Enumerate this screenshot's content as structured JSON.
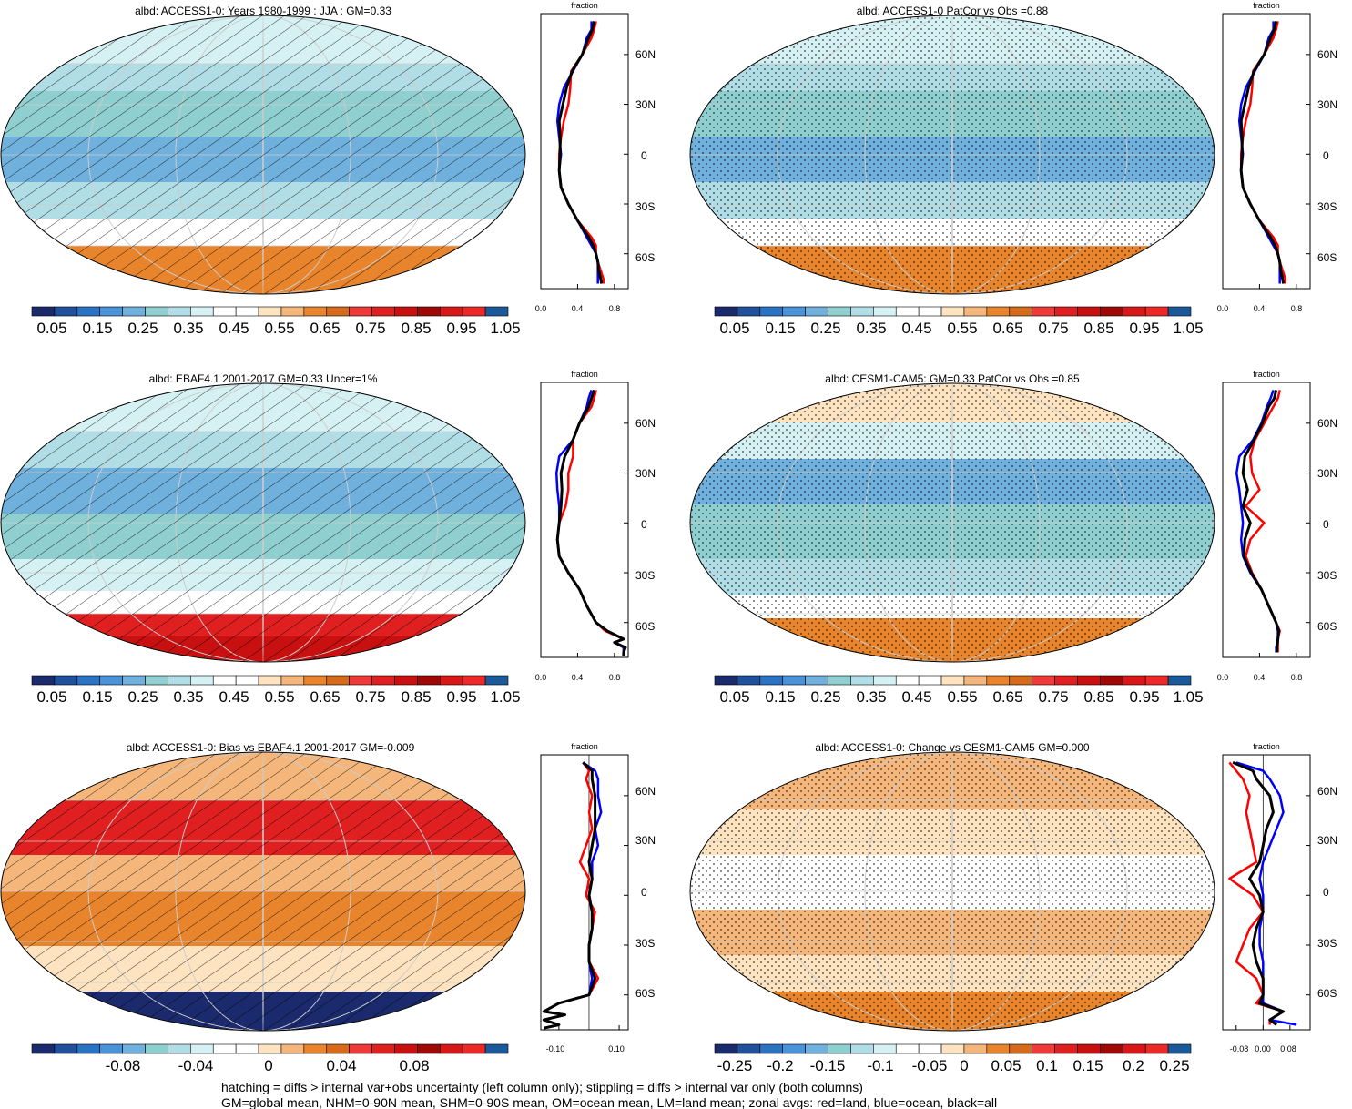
{
  "footer": {
    "line1": "hatching = diffs > internal var+obs uncertainty (left column only); stippling = diffs > internal var only (both columns)",
    "line2": "GM=global mean, NHM=0-90N mean, SHM=0-90S mean, OM=ocean mean, LM=land mean; zonal avgs: red=land, blue=ocean, black=all"
  },
  "colors": {
    "palette_full": [
      "#1a2a6c",
      "#21519c",
      "#2a72c4",
      "#4a93d9",
      "#6fb0dd",
      "#8fcfcf",
      "#b0dde6",
      "#d6f1f4",
      "#ffffff",
      "#ffffff",
      "#fde3bf",
      "#f4b67a",
      "#e8852c",
      "#d46a1a",
      "#f03a3a",
      "#e02020",
      "#c81010",
      "#a00808",
      "#d81818",
      "#ee2828",
      "#1a5a9a"
    ],
    "palette_diff": [
      "#1a2a6c",
      "#21519c",
      "#2a72c4",
      "#4a93d9",
      "#6fb0dd",
      "#8fcfcf",
      "#b0dde6",
      "#d6f1f4",
      "#ffffff",
      "#ffffff",
      "#fde3bf",
      "#f4b67a",
      "#e8852c",
      "#d46a1a",
      "#f03a3a",
      "#e02020",
      "#c81010",
      "#a00808",
      "#d81818",
      "#ee2828",
      "#1a5a9a"
    ],
    "land": "#ff0000",
    "ocean": "#0000ff",
    "all": "#000000"
  },
  "chart_data": [
    {
      "type": "heatmap",
      "title": "albd: ACCESS1-0: Years 1980-1999 : JJA : GM=0.33",
      "colorbar_labels": [
        "0.05",
        "0.15",
        "0.25",
        "0.35",
        "0.45",
        "0.55",
        "0.65",
        "0.75",
        "0.85",
        "0.95",
        "1.05"
      ],
      "overlay": "hatching",
      "zonal": {
        "title": "fraction",
        "lat_ticks": [
          "60N",
          "30N",
          "0",
          "30S",
          "60S"
        ],
        "lat_values": [
          60,
          30,
          0,
          -30,
          -60
        ],
        "x_ticks": [
          "0.0",
          "0.4",
          "0.8"
        ],
        "x_values": [
          0,
          0.4,
          0.8
        ],
        "xlim": [
          0,
          0.95
        ],
        "lat": [
          80,
          75,
          70,
          60,
          50,
          40,
          30,
          20,
          10,
          0,
          -10,
          -20,
          -30,
          -40,
          -50,
          -55,
          -60,
          -65,
          -70,
          -75,
          -78
        ],
        "land": [
          0.6,
          0.58,
          0.55,
          0.45,
          0.33,
          0.32,
          0.3,
          0.25,
          0.22,
          0.2,
          0.2,
          0.22,
          0.3,
          0.4,
          0.55,
          0.6,
          0.6,
          0.62,
          0.65,
          0.68,
          0.68
        ],
        "ocean": [
          0.55,
          0.55,
          0.5,
          0.45,
          0.35,
          0.25,
          0.2,
          0.18,
          0.2,
          0.22,
          0.2,
          0.22,
          0.3,
          0.4,
          0.5,
          0.55,
          0.6,
          0.62,
          0.62,
          0.62,
          0.62
        ],
        "all": [
          0.58,
          0.56,
          0.52,
          0.45,
          0.34,
          0.28,
          0.24,
          0.2,
          0.21,
          0.21,
          0.2,
          0.22,
          0.3,
          0.4,
          0.52,
          0.57,
          0.6,
          0.62,
          0.63,
          0.65,
          0.66
        ]
      }
    },
    {
      "type": "heatmap",
      "title": "albd: ACCESS1-0 PatCor vs Obs =0.88",
      "colorbar_labels": [
        "0.05",
        "0.15",
        "0.25",
        "0.35",
        "0.45",
        "0.55",
        "0.65",
        "0.75",
        "0.85",
        "0.95",
        "1.05"
      ],
      "overlay": "stippling",
      "zonal": {
        "title": "fraction",
        "lat_ticks": [
          "60N",
          "30N",
          "0",
          "30S",
          "60S"
        ],
        "lat_values": [
          60,
          30,
          0,
          -30,
          -60
        ],
        "x_ticks": [
          "0.0",
          "0.4",
          "0.8"
        ],
        "x_values": [
          0,
          0.4,
          0.8
        ],
        "xlim": [
          0,
          0.95
        ],
        "lat": [
          80,
          75,
          70,
          60,
          50,
          40,
          30,
          20,
          10,
          0,
          -10,
          -20,
          -30,
          -40,
          -50,
          -55,
          -60,
          -65,
          -70,
          -75,
          -78
        ],
        "land": [
          0.6,
          0.58,
          0.55,
          0.45,
          0.33,
          0.32,
          0.3,
          0.25,
          0.22,
          0.2,
          0.2,
          0.22,
          0.3,
          0.4,
          0.55,
          0.6,
          0.6,
          0.62,
          0.65,
          0.68,
          0.68
        ],
        "ocean": [
          0.55,
          0.55,
          0.5,
          0.45,
          0.35,
          0.25,
          0.2,
          0.18,
          0.2,
          0.22,
          0.2,
          0.22,
          0.3,
          0.4,
          0.5,
          0.55,
          0.6,
          0.62,
          0.62,
          0.62,
          0.62
        ],
        "all": [
          0.58,
          0.56,
          0.52,
          0.45,
          0.34,
          0.28,
          0.24,
          0.2,
          0.21,
          0.21,
          0.2,
          0.22,
          0.3,
          0.4,
          0.52,
          0.57,
          0.6,
          0.62,
          0.63,
          0.65,
          0.66
        ]
      }
    },
    {
      "type": "heatmap",
      "title": "albd: EBAF4.1 2001-2017 GM=0.33 Uncer=1%",
      "colorbar_labels": [
        "0.05",
        "0.15",
        "0.25",
        "0.35",
        "0.45",
        "0.55",
        "0.65",
        "0.75",
        "0.85",
        "0.95",
        "1.05"
      ],
      "overlay": "hatching",
      "zonal": {
        "title": "fraction",
        "lat_ticks": [
          "60N",
          "30N",
          "0",
          "30S",
          "60S"
        ],
        "lat_values": [
          60,
          30,
          0,
          -30,
          -60
        ],
        "x_ticks": [
          "0.0",
          "0.4",
          "0.8"
        ],
        "x_values": [
          0,
          0.4,
          0.8
        ],
        "xlim": [
          0,
          0.95
        ],
        "lat": [
          80,
          75,
          70,
          60,
          50,
          40,
          30,
          20,
          10,
          0,
          -10,
          -20,
          -30,
          -40,
          -50,
          -60,
          -65,
          -70,
          -72,
          -75,
          -78,
          -80
        ],
        "land": [
          0.6,
          0.58,
          0.55,
          0.42,
          0.35,
          0.35,
          0.3,
          0.3,
          0.27,
          0.2,
          0.18,
          0.2,
          0.3,
          0.42,
          0.5,
          0.6,
          0.7,
          0.9,
          0.8,
          0.92,
          0.9,
          0.9
        ],
        "ocean": [
          0.55,
          0.52,
          0.5,
          0.42,
          0.35,
          0.2,
          0.17,
          0.18,
          0.2,
          0.2,
          0.18,
          0.2,
          0.3,
          0.42,
          0.5,
          0.6,
          0.72,
          0.9,
          0.8,
          0.9,
          0.9,
          0.9
        ],
        "all": [
          0.58,
          0.55,
          0.52,
          0.42,
          0.35,
          0.26,
          0.22,
          0.23,
          0.22,
          0.2,
          0.18,
          0.2,
          0.3,
          0.42,
          0.5,
          0.6,
          0.72,
          0.9,
          0.8,
          0.92,
          0.9,
          0.9
        ]
      }
    },
    {
      "type": "heatmap",
      "title": "albd: CESM1-CAM5: GM=0.33 PatCor vs Obs =0.85",
      "colorbar_labels": [
        "0.05",
        "0.15",
        "0.25",
        "0.35",
        "0.45",
        "0.55",
        "0.65",
        "0.75",
        "0.85",
        "0.95",
        "1.05"
      ],
      "overlay": "stippling",
      "zonal": {
        "title": "fraction",
        "lat_ticks": [
          "60N",
          "30N",
          "0",
          "30S",
          "60S"
        ],
        "lat_values": [
          60,
          30,
          0,
          -30,
          -60
        ],
        "x_ticks": [
          "0.0",
          "0.4",
          "0.8"
        ],
        "x_values": [
          0,
          0.4,
          0.8
        ],
        "xlim": [
          0,
          0.95
        ],
        "lat": [
          80,
          75,
          70,
          60,
          50,
          40,
          30,
          20,
          10,
          0,
          -10,
          -20,
          -30,
          -40,
          -50,
          -60,
          -65,
          -70,
          -75,
          -78
        ],
        "land": [
          0.62,
          0.6,
          0.55,
          0.45,
          0.35,
          0.3,
          0.32,
          0.4,
          0.25,
          0.45,
          0.3,
          0.25,
          0.32,
          0.42,
          0.5,
          0.58,
          0.62,
          0.6,
          0.6,
          0.6
        ],
        "ocean": [
          0.55,
          0.52,
          0.48,
          0.42,
          0.33,
          0.18,
          0.15,
          0.18,
          0.2,
          0.22,
          0.2,
          0.22,
          0.3,
          0.42,
          0.5,
          0.58,
          0.6,
          0.6,
          0.58,
          0.58
        ],
        "all": [
          0.58,
          0.56,
          0.5,
          0.43,
          0.34,
          0.24,
          0.22,
          0.27,
          0.22,
          0.3,
          0.24,
          0.23,
          0.31,
          0.42,
          0.5,
          0.58,
          0.61,
          0.6,
          0.59,
          0.59
        ]
      }
    },
    {
      "type": "heatmap",
      "title": "albd: ACCESS1-0: Bias vs EBAF4.1 2001-2017 GM=-0.009",
      "colorbar_labels": [
        "-0.08",
        "-0.04",
        "0",
        "0.04",
        "0.08"
      ],
      "overlay": "hatching",
      "zonal": {
        "title": "fraction",
        "lat_ticks": [
          "60N",
          "30N",
          "0",
          "30S",
          "60S"
        ],
        "lat_values": [
          60,
          30,
          0,
          -30,
          -60
        ],
        "x_ticks": [
          "-0.10",
          "0.10"
        ],
        "x_values": [
          -0.1,
          0.1
        ],
        "xlim": [
          -0.16,
          0.13
        ],
        "lat": [
          80,
          75,
          70,
          60,
          50,
          40,
          30,
          20,
          10,
          0,
          -10,
          -20,
          -30,
          -40,
          -50,
          -60,
          -65,
          -70,
          -72,
          -75,
          -78,
          -80
        ],
        "land": [
          -0.02,
          0.0,
          -0.01,
          0.01,
          0.0,
          0.01,
          -0.01,
          -0.03,
          0.0,
          -0.01,
          0.02,
          0.01,
          0.0,
          0.0,
          0.03,
          0.0,
          -0.1,
          -0.15,
          -0.08,
          -0.15,
          -0.1,
          -0.15
        ],
        "ocean": [
          -0.02,
          0.02,
          0.03,
          0.03,
          0.04,
          0.02,
          0.03,
          0.01,
          0.01,
          0.0,
          0.01,
          0.01,
          0.0,
          0.0,
          0.01,
          0.0,
          -0.1,
          -0.15,
          -0.08,
          -0.15,
          -0.1,
          -0.15
        ],
        "all": [
          -0.02,
          0.01,
          0.01,
          0.02,
          0.02,
          0.02,
          0.01,
          0.0,
          0.01,
          0.0,
          0.01,
          0.01,
          0.0,
          0.0,
          0.02,
          0.0,
          -0.1,
          -0.15,
          -0.08,
          -0.15,
          -0.1,
          -0.15
        ]
      }
    },
    {
      "type": "heatmap",
      "title": "albd: ACCESS1-0: Change vs CESM1-CAM5 GM=0.000",
      "colorbar_labels": [
        "-0.25",
        "-0.2",
        "-0.15",
        "-0.1",
        "-0.05",
        "0",
        "0.05",
        "0.1",
        "0.15",
        "0.2",
        "0.25"
      ],
      "overlay": "stippling",
      "zonal": {
        "title": "fraction",
        "lat_ticks": [
          "60N",
          "30N",
          "0",
          "30S",
          "60S"
        ],
        "lat_values": [
          60,
          30,
          0,
          -30,
          -60
        ],
        "x_ticks": [
          "-0.08",
          "0.00",
          "0.08"
        ],
        "x_values": [
          -0.08,
          0,
          0.08
        ],
        "xlim": [
          -0.12,
          0.14
        ],
        "lat": [
          80,
          75,
          70,
          60,
          50,
          40,
          30,
          20,
          10,
          0,
          -10,
          -20,
          -30,
          -40,
          -50,
          -60,
          -65,
          -70,
          -75,
          -78
        ],
        "land": [
          -0.1,
          -0.08,
          -0.06,
          -0.04,
          -0.05,
          -0.04,
          -0.03,
          -0.02,
          -0.1,
          -0.03,
          0.0,
          -0.04,
          -0.06,
          -0.08,
          -0.02,
          0.0,
          -0.02,
          0.06,
          0.02,
          0.02
        ],
        "ocean": [
          -0.08,
          0.0,
          0.02,
          0.05,
          0.06,
          0.04,
          0.02,
          0.0,
          -0.01,
          0.0,
          0.0,
          -0.01,
          -0.01,
          0.0,
          0.0,
          0.0,
          0.0,
          0.06,
          0.02,
          0.1
        ],
        "all": [
          -0.09,
          -0.03,
          -0.02,
          0.02,
          0.03,
          0.01,
          0.0,
          -0.01,
          -0.04,
          -0.01,
          0.0,
          -0.02,
          -0.03,
          -0.02,
          0.0,
          0.0,
          -0.01,
          0.06,
          0.02,
          0.04
        ]
      }
    }
  ]
}
